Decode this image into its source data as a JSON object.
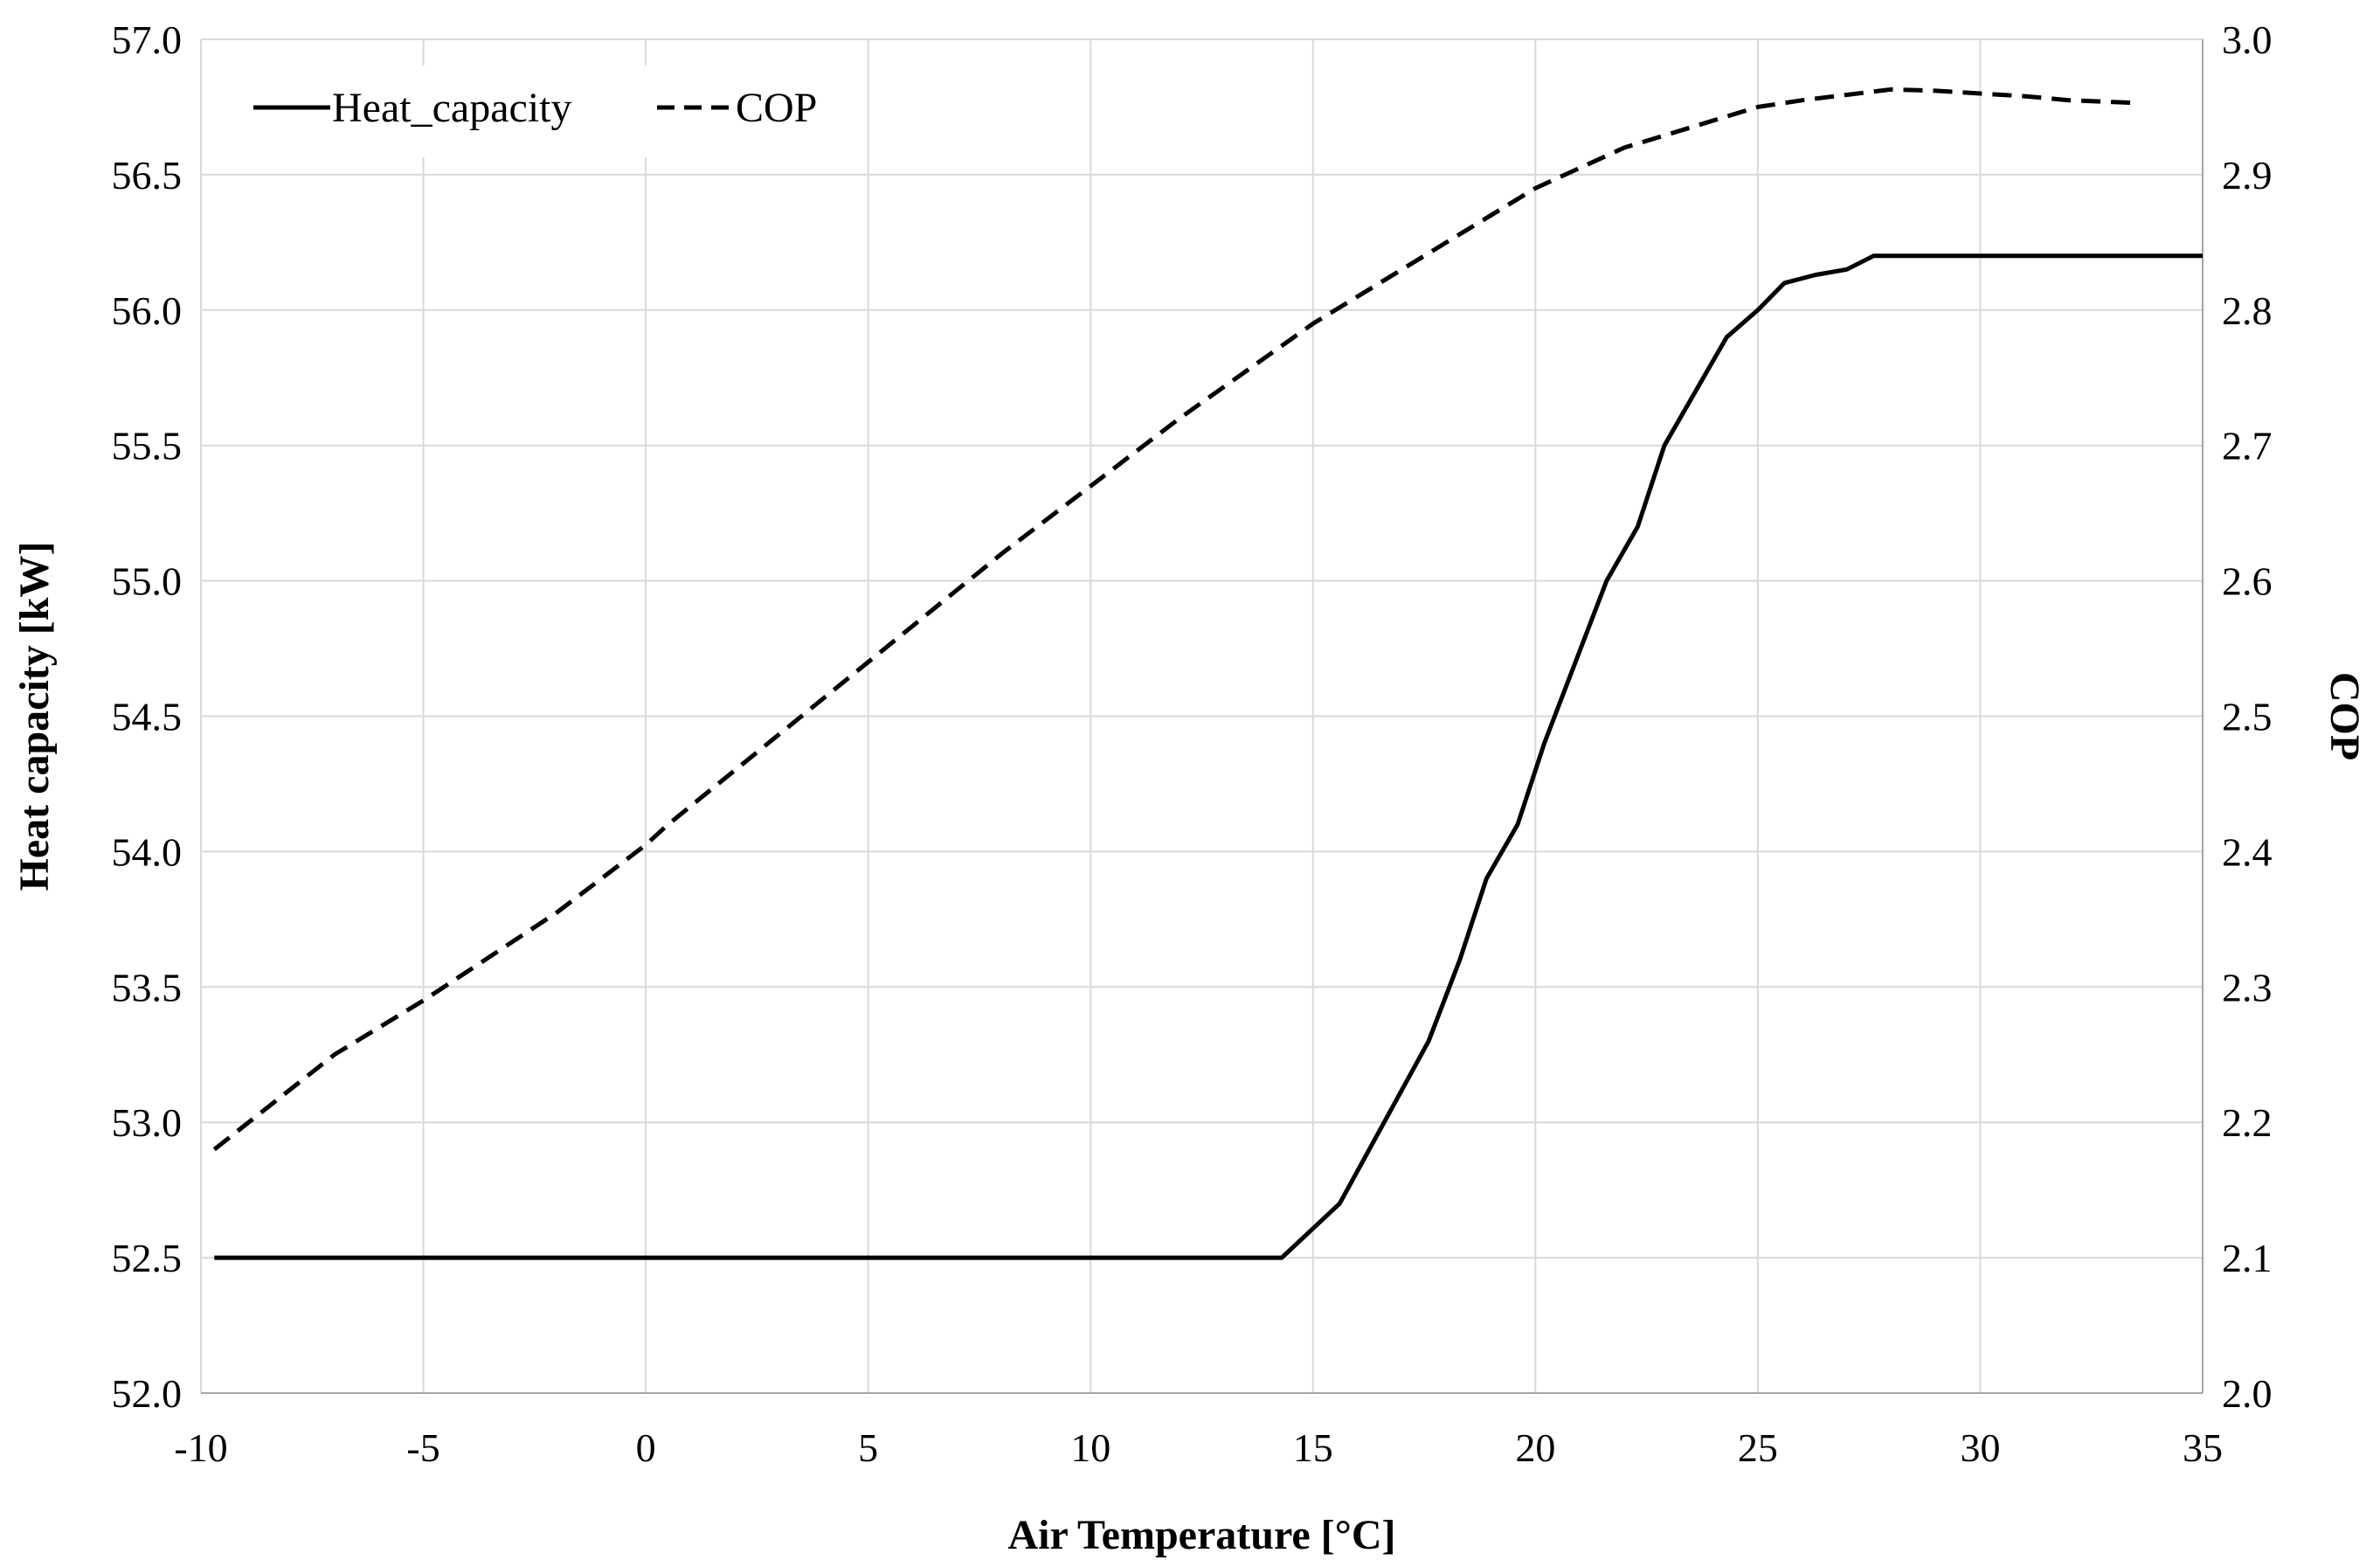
{
  "chart_data": {
    "type": "line",
    "title": "",
    "xlabel": "Air Temperature [°C]",
    "ylabel": "Heat capacity [kW]",
    "y2label": "COP",
    "xlim": [
      -10,
      35
    ],
    "ylim": [
      52.0,
      57.0
    ],
    "y2lim": [
      2.0,
      3.0
    ],
    "x_ticks": [
      "-10",
      "-5",
      "0",
      "5",
      "10",
      "15",
      "20",
      "25",
      "30",
      "35"
    ],
    "y_ticks": [
      "52.0",
      "52.5",
      "53.0",
      "53.5",
      "54.0",
      "54.5",
      "55.0",
      "55.5",
      "56.0",
      "56.5",
      "57.0"
    ],
    "y2_ticks": [
      "2.0",
      "2.1",
      "2.2",
      "2.3",
      "2.4",
      "2.5",
      "2.6",
      "2.7",
      "2.8",
      "2.9",
      "3.0"
    ],
    "grid": true,
    "legend_position": "top-left",
    "series": [
      {
        "name": "Heat_capacity",
        "axis": "left",
        "style": "solid",
        "color": "#000000",
        "x": [
          -9.7,
          14.3,
          15.6,
          16.6,
          17.6,
          18.3,
          18.9,
          19.6,
          20.2,
          20.9,
          21.6,
          22.3,
          22.9,
          23.6,
          24.3,
          25.0,
          25.6,
          26.3,
          27.0,
          27.6,
          35.0
        ],
        "values": [
          52.5,
          52.5,
          52.7,
          53.0,
          53.3,
          53.6,
          53.9,
          54.1,
          54.4,
          54.7,
          55.0,
          55.2,
          55.5,
          55.7,
          55.9,
          56.0,
          56.1,
          56.13,
          56.15,
          56.2,
          56.2
        ]
      },
      {
        "name": "COP",
        "axis": "right",
        "style": "dashed",
        "color": "#000000",
        "x": [
          -9.7,
          -7.0,
          -5.0,
          -2.0,
          -1.0,
          0.0,
          0.5,
          2.0,
          5.0,
          8.0,
          10.0,
          12.0,
          15.0,
          18.0,
          20.0,
          22.0,
          24.0,
          25.0,
          26.0,
          28.0,
          29.0,
          31.0,
          32.0,
          33.5
        ],
        "values": [
          2.18,
          2.25,
          2.29,
          2.355,
          2.38,
          2.405,
          2.42,
          2.46,
          2.54,
          2.62,
          2.67,
          2.72,
          2.79,
          2.85,
          2.89,
          2.92,
          2.94,
          2.95,
          2.955,
          2.963,
          2.962,
          2.958,
          2.955,
          2.953
        ]
      }
    ]
  }
}
